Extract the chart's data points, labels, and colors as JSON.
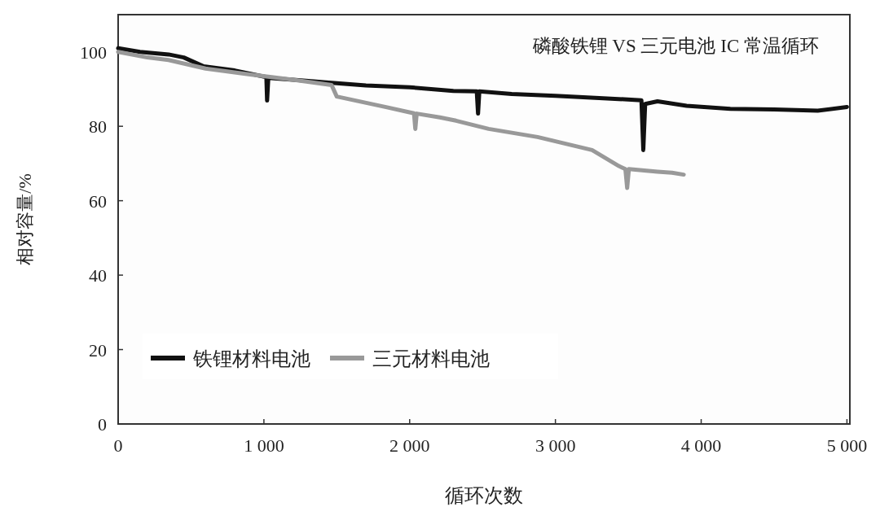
{
  "chart_data": {
    "type": "line",
    "title": "磷酸铁锂 VS 三元电池 IC 常温循环",
    "xlabel": "循环次数",
    "ylabel": "相对容量/%",
    "xlim": [
      0,
      5020
    ],
    "ylim": [
      0,
      110
    ],
    "xticks": [
      0,
      {
        "value": 1000,
        "label": "1 000"
      },
      {
        "value": 2000,
        "label": "2 000"
      },
      {
        "value": 3000,
        "label": "3 000"
      },
      {
        "value": 4000,
        "label": "4 000"
      },
      {
        "value": 5000,
        "label": "5 000"
      }
    ],
    "yticks": [
      0,
      20,
      40,
      60,
      80,
      100
    ],
    "legend": "bottom left",
    "series": [
      {
        "name": "铁锂材料电池",
        "color": "#111111",
        "x": [
          0,
          150,
          346,
          450,
          587,
          800,
          1017,
          1022,
          1030,
          1200,
          1464,
          1700,
          2000,
          2300,
          2460,
          2469,
          2478,
          2700,
          3000,
          3300,
          3590,
          3603,
          3616,
          3700,
          3900,
          4200,
          4500,
          4800,
          5000
        ],
        "values": [
          101,
          100,
          99.3,
          98.5,
          96.1,
          95,
          93.2,
          86.9,
          93,
          92.5,
          91.7,
          91,
          90.5,
          89.5,
          89.4,
          83.4,
          89.4,
          88.7,
          88.2,
          87.6,
          87,
          73.6,
          86,
          86.7,
          85.5,
          84.7,
          84.5,
          84.2,
          85.2
        ]
      },
      {
        "name": "三元材料电池",
        "color": "#999999",
        "x": [
          0,
          200,
          346,
          600,
          905,
          1200,
          1464,
          1500,
          1832,
          2030,
          2039,
          2048,
          2207,
          2318,
          2542,
          2877,
          3251,
          3436,
          3480,
          3492,
          3504,
          3700,
          3800,
          3880
        ],
        "values": [
          100,
          98.5,
          97.8,
          95.5,
          93.9,
          92.5,
          91.1,
          88,
          85.2,
          83.5,
          79.3,
          83.4,
          82.4,
          81.5,
          79.3,
          77.1,
          73.6,
          69.3,
          68.5,
          63.4,
          68.5,
          67.8,
          67.5,
          67
        ]
      }
    ]
  }
}
